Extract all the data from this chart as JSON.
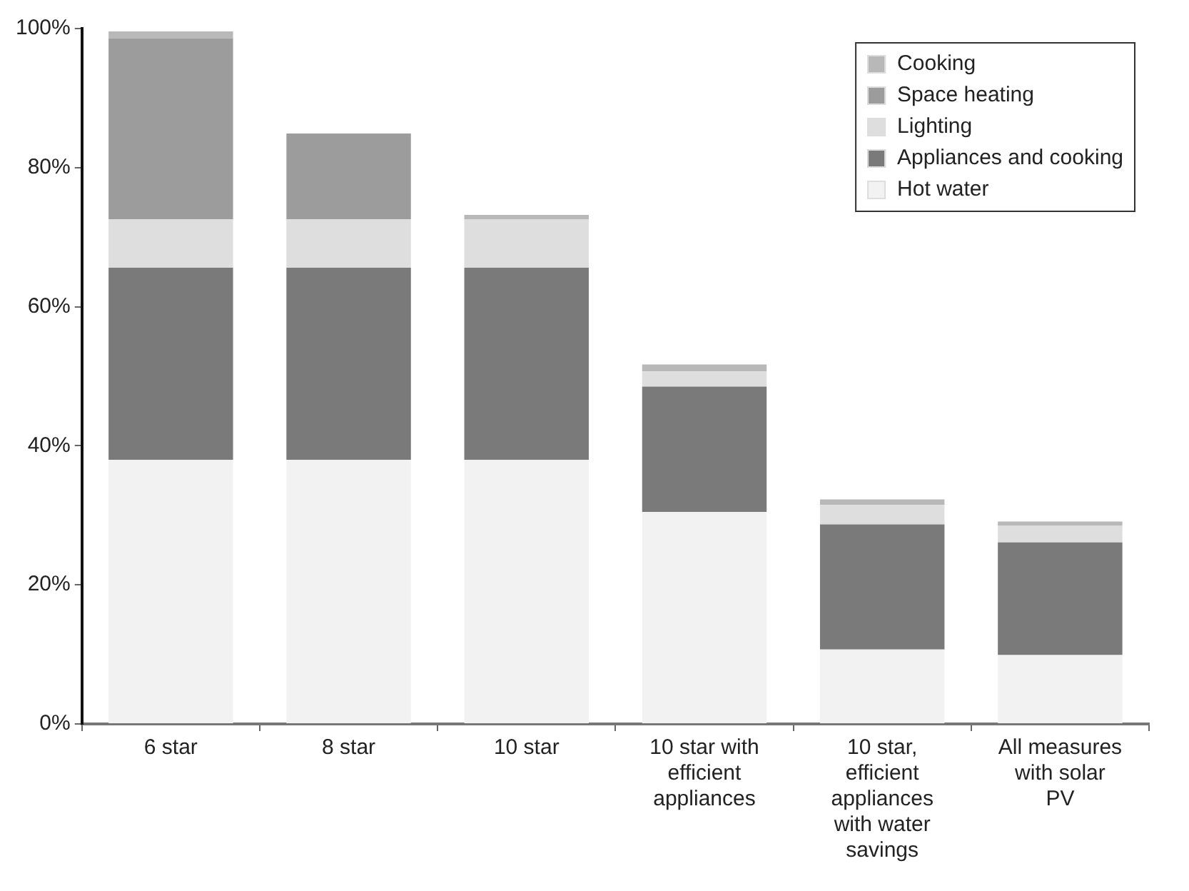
{
  "chart_data": {
    "type": "bar",
    "stacked": true,
    "legend": "top right",
    "grid": false,
    "categories": [
      "6 star",
      "8 star",
      "10 star",
      "10 star with efficient appliances",
      "10 star, efficient appliances with water savings",
      "All measures with solar PV"
    ],
    "series": [
      {
        "name": "Hot water",
        "color": "#f2f2f2",
        "values": [
          38,
          38,
          38,
          30.5,
          10.7,
          9.9
        ]
      },
      {
        "name": "Appliances and cooking",
        "color": "#7a7a7a",
        "values": [
          27.6,
          27.6,
          27.6,
          18,
          18,
          16.2
        ]
      },
      {
        "name": "Lighting",
        "color": "#dedede",
        "values": [
          7,
          7,
          7,
          2.2,
          2.8,
          2.4
        ]
      },
      {
        "name": "Space heating",
        "color": "#9c9c9c",
        "values": [
          26,
          12.3,
          null,
          null,
          null,
          null
        ]
      },
      {
        "name": "Cooking",
        "color": "#b8b8b8",
        "values": [
          1,
          null,
          0.6,
          1,
          0.8,
          0.6
        ]
      }
    ],
    "ylim": [
      0,
      100
    ],
    "yticks": [
      {
        "value": 0,
        "label": "0%"
      },
      {
        "value": 20,
        "label": "20%"
      },
      {
        "value": 40,
        "label": "40%"
      },
      {
        "value": 60,
        "label": "60%"
      },
      {
        "value": 80,
        "label": "80%"
      },
      {
        "value": 100,
        "label": "100%"
      }
    ]
  }
}
